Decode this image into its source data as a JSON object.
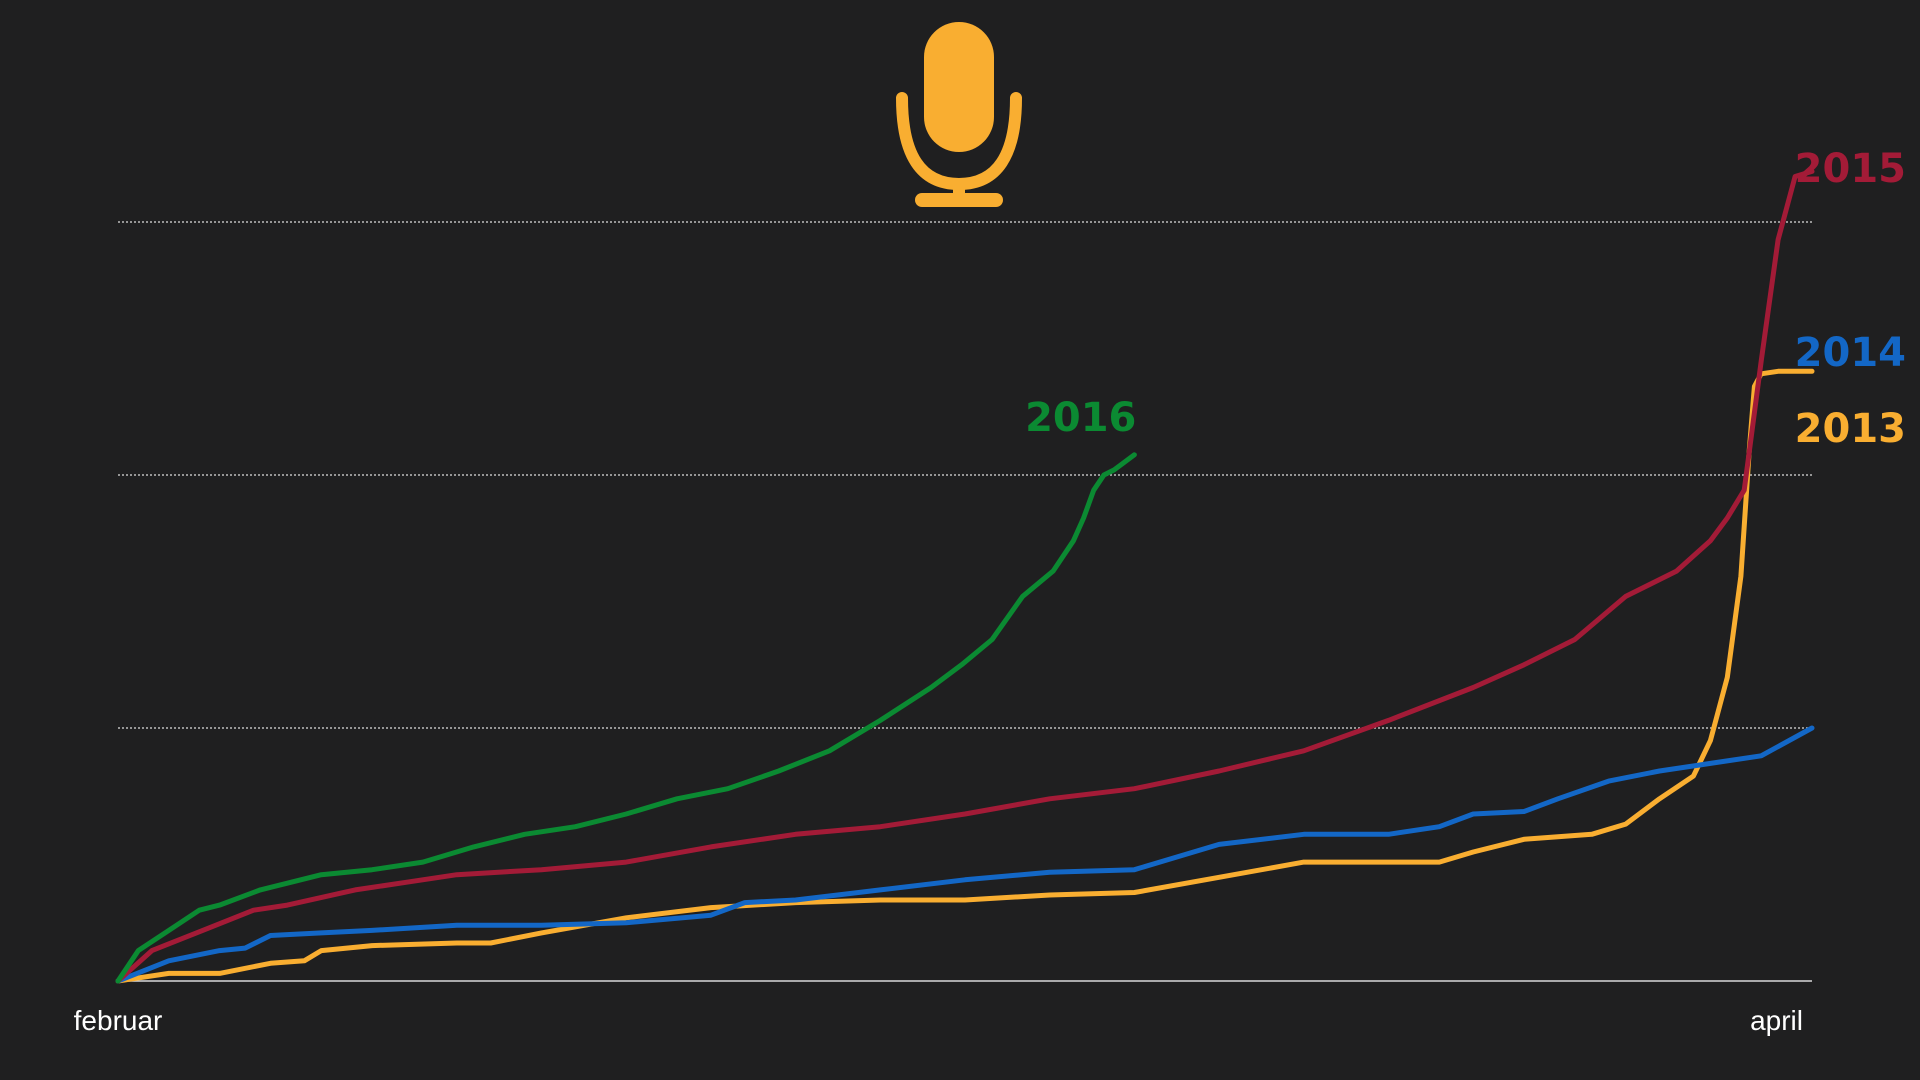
{
  "icon": {
    "name": "microphone-icon",
    "color": "#f9ae31"
  },
  "chart_data": {
    "type": "line",
    "x_unit": "progress from februar to april (0–1)",
    "xlim": [
      0,
      1
    ],
    "ylim": [
      0,
      3.1
    ],
    "y_gridlines": [
      1,
      2,
      3
    ],
    "grid": true,
    "legend": "end-of-line labels",
    "x_ticks": [
      {
        "label": "februar",
        "value": 0
      },
      {
        "label": "april",
        "value": 1
      }
    ],
    "series": [
      {
        "name": "2013",
        "color": "#f9ae31",
        "points": [
          [
            0,
            0
          ],
          [
            0.03,
            0.03
          ],
          [
            0.06,
            0.03
          ],
          [
            0.09,
            0.07
          ],
          [
            0.11,
            0.08
          ],
          [
            0.12,
            0.12
          ],
          [
            0.15,
            0.14
          ],
          [
            0.2,
            0.15
          ],
          [
            0.22,
            0.15
          ],
          [
            0.25,
            0.19
          ],
          [
            0.3,
            0.25
          ],
          [
            0.35,
            0.29
          ],
          [
            0.4,
            0.31
          ],
          [
            0.45,
            0.32
          ],
          [
            0.5,
            0.32
          ],
          [
            0.55,
            0.34
          ],
          [
            0.6,
            0.35
          ],
          [
            0.65,
            0.41
          ],
          [
            0.7,
            0.47
          ],
          [
            0.75,
            0.47
          ],
          [
            0.78,
            0.47
          ],
          [
            0.8,
            0.51
          ],
          [
            0.83,
            0.56
          ],
          [
            0.87,
            0.58
          ],
          [
            0.89,
            0.62
          ],
          [
            0.91,
            0.72
          ],
          [
            0.93,
            0.81
          ],
          [
            0.94,
            0.95
          ],
          [
            0.95,
            1.2
          ],
          [
            0.958,
            1.6
          ],
          [
            0.963,
            2.1
          ],
          [
            0.966,
            2.35
          ],
          [
            0.97,
            2.4
          ],
          [
            0.98,
            2.41
          ],
          [
            1.0,
            2.41
          ]
        ]
      },
      {
        "name": "2014",
        "color": "#1367c6",
        "points": [
          [
            0,
            0
          ],
          [
            0.03,
            0.08
          ],
          [
            0.06,
            0.12
          ],
          [
            0.075,
            0.13
          ],
          [
            0.09,
            0.18
          ],
          [
            0.12,
            0.19
          ],
          [
            0.15,
            0.2
          ],
          [
            0.2,
            0.22
          ],
          [
            0.25,
            0.22
          ],
          [
            0.3,
            0.23
          ],
          [
            0.35,
            0.26
          ],
          [
            0.37,
            0.31
          ],
          [
            0.4,
            0.32
          ],
          [
            0.45,
            0.36
          ],
          [
            0.5,
            0.4
          ],
          [
            0.55,
            0.43
          ],
          [
            0.6,
            0.44
          ],
          [
            0.63,
            0.5
          ],
          [
            0.65,
            0.54
          ],
          [
            0.7,
            0.58
          ],
          [
            0.75,
            0.58
          ],
          [
            0.78,
            0.61
          ],
          [
            0.8,
            0.66
          ],
          [
            0.83,
            0.67
          ],
          [
            0.85,
            0.72
          ],
          [
            0.88,
            0.79
          ],
          [
            0.91,
            0.83
          ],
          [
            0.94,
            0.86
          ],
          [
            0.97,
            0.89
          ],
          [
            1.0,
            1.0
          ]
        ]
      },
      {
        "name": "2015",
        "color": "#a31b37",
        "points": [
          [
            0,
            0
          ],
          [
            0.02,
            0.12
          ],
          [
            0.05,
            0.2
          ],
          [
            0.08,
            0.28
          ],
          [
            0.1,
            0.3
          ],
          [
            0.14,
            0.36
          ],
          [
            0.17,
            0.39
          ],
          [
            0.2,
            0.42
          ],
          [
            0.25,
            0.44
          ],
          [
            0.3,
            0.47
          ],
          [
            0.35,
            0.53
          ],
          [
            0.4,
            0.58
          ],
          [
            0.45,
            0.61
          ],
          [
            0.5,
            0.66
          ],
          [
            0.55,
            0.72
          ],
          [
            0.6,
            0.76
          ],
          [
            0.65,
            0.83
          ],
          [
            0.7,
            0.91
          ],
          [
            0.75,
            1.03
          ],
          [
            0.8,
            1.16
          ],
          [
            0.83,
            1.25
          ],
          [
            0.86,
            1.35
          ],
          [
            0.89,
            1.52
          ],
          [
            0.92,
            1.62
          ],
          [
            0.94,
            1.74
          ],
          [
            0.95,
            1.83
          ],
          [
            0.96,
            1.94
          ],
          [
            0.97,
            2.45
          ],
          [
            0.98,
            2.93
          ],
          [
            0.99,
            3.18
          ],
          [
            1.0,
            3.2
          ]
        ]
      },
      {
        "name": "2016",
        "color": "#0b8a32",
        "points": [
          [
            0,
            0
          ],
          [
            0.02,
            0.12
          ],
          [
            0.05,
            0.2
          ],
          [
            0.08,
            0.28
          ],
          [
            0.1,
            0.3
          ],
          [
            0.14,
            0.36
          ],
          [
            0.17,
            0.39
          ],
          [
            0.2,
            0.42
          ],
          [
            0.25,
            0.44
          ],
          [
            0.3,
            0.47
          ],
          [
            0.35,
            0.53
          ],
          [
            0.4,
            0.58
          ],
          [
            0.45,
            0.61
          ],
          [
            0.5,
            0.66
          ],
          [
            0.55,
            0.72
          ],
          [
            0.6,
            0.76
          ],
          [
            0.65,
            0.83
          ],
          [
            0.7,
            0.91
          ],
          [
            0.75,
            1.03
          ],
          [
            0.8,
            1.16
          ],
          [
            0.83,
            1.25
          ],
          [
            0.86,
            1.35
          ],
          [
            0.89,
            1.52
          ],
          [
            0.92,
            1.62
          ],
          [
            0.94,
            1.74
          ],
          [
            0.95,
            1.83
          ],
          [
            0.96,
            1.94
          ],
          [
            0.97,
            2.0
          ],
          [
            0.98,
            2.02
          ],
          [
            0.99,
            2.05
          ],
          [
            1.0,
            2.08
          ]
        ],
        "x_end": 0.6
      }
    ]
  }
}
